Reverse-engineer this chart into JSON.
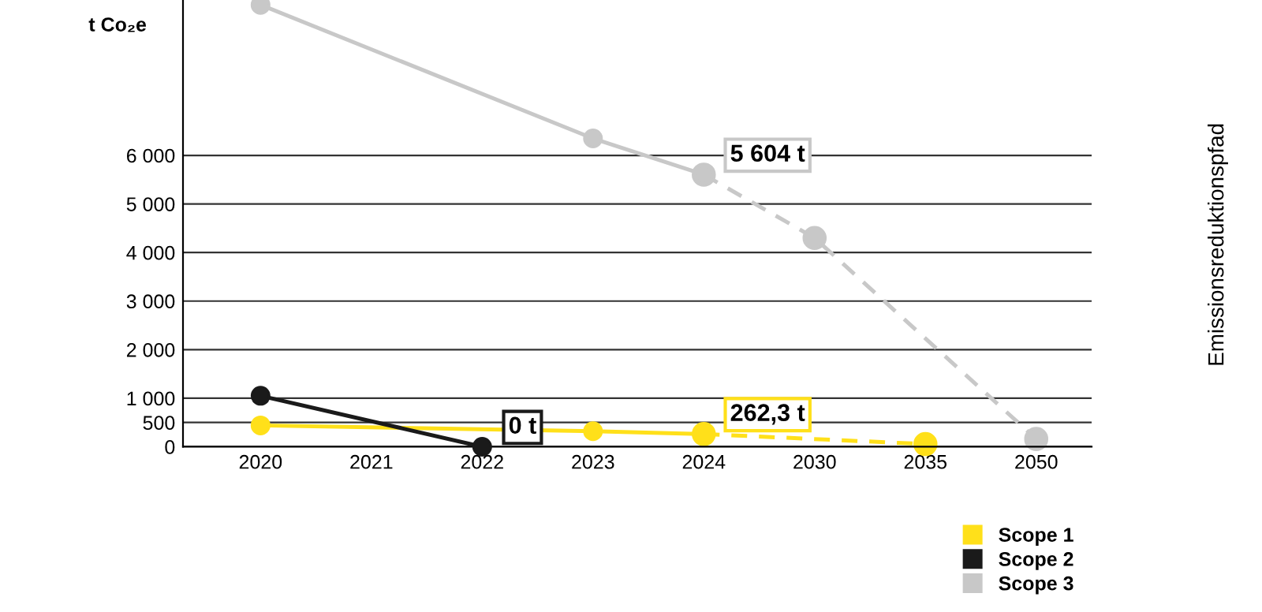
{
  "chart_data": {
    "type": "line",
    "ylabel": "t Co₂e",
    "annotations": [
      "Emissionsreduktionspfad"
    ],
    "categories": [
      "2020",
      "2021",
      "2022",
      "2023",
      "2024",
      "2030",
      "2035",
      "2050"
    ],
    "series": [
      {
        "name": "Scope 1",
        "color": "#ffe01a",
        "line_style": "solid",
        "values": [
          440,
          null,
          null,
          320,
          262.3,
          null,
          null,
          null
        ],
        "value_labels": [
          null,
          null,
          null,
          null,
          "262,3 t",
          null,
          null,
          null
        ]
      },
      {
        "color": "#ffe01a",
        "line_style": "dashed",
        "values": [
          null,
          null,
          null,
          null,
          262.3,
          null,
          55,
          null
        ]
      },
      {
        "name": "Scope 2",
        "color": "#1a1a1a",
        "line_style": "solid",
        "values": [
          1050,
          null,
          0,
          null,
          null,
          null,
          null,
          null
        ],
        "value_labels": [
          null,
          null,
          "0 t",
          null,
          null,
          null,
          null,
          null
        ]
      },
      {
        "name": "Scope 3",
        "color": "#c8c8c8",
        "line_style": "solid",
        "values": [
          9100,
          null,
          null,
          6350,
          5604,
          null,
          null,
          null
        ],
        "value_labels": [
          null,
          null,
          null,
          null,
          "5 604 t",
          null,
          null,
          null
        ]
      },
      {
        "color": "#c8c8c8",
        "line_style": "dashed",
        "values": [
          null,
          null,
          null,
          null,
          5604,
          4300,
          null,
          160
        ]
      }
    ],
    "ylim": [
      0,
      9200
    ],
    "yticks": [
      0,
      500,
      {
        "value": 1000,
        "label": "1 000"
      },
      {
        "value": 2000,
        "label": "2 000"
      },
      {
        "value": 3000,
        "label": "3 000"
      },
      {
        "value": 4000,
        "label": "4 000"
      },
      {
        "value": 5000,
        "label": "5 000"
      },
      {
        "value": 6000,
        "label": "6 000"
      }
    ],
    "grid": "y",
    "marker": "circle",
    "legend": "bottom right"
  }
}
